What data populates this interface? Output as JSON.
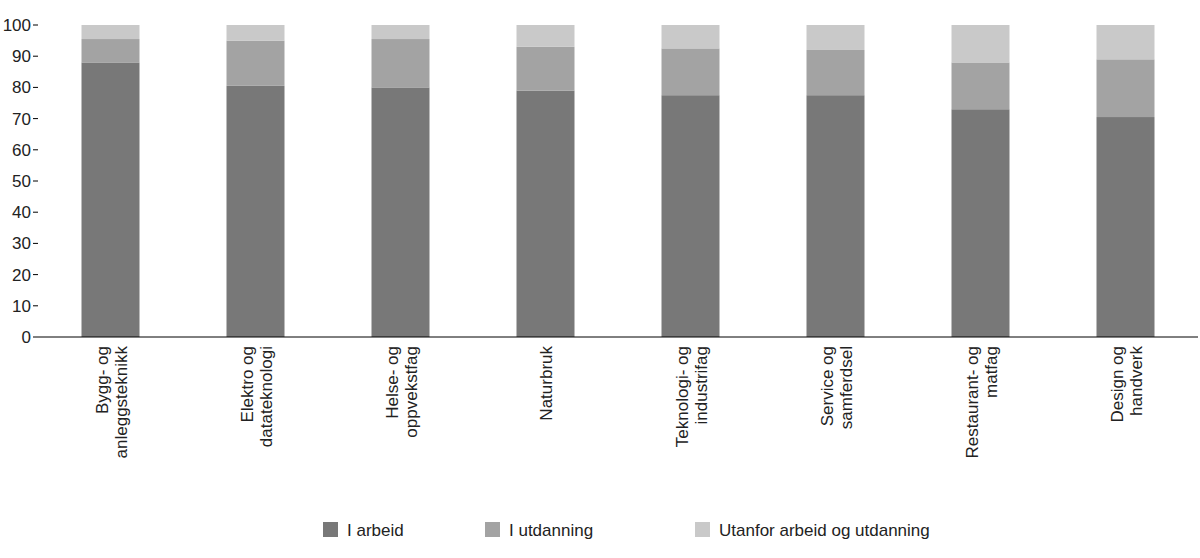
{
  "chart_data": {
    "type": "bar",
    "stacked": true,
    "grid": false,
    "legend": "bottom",
    "categories": [
      "Bygg- og anleggsteknikk",
      "Elektro og datateknologi",
      "Helse- og oppvekstfag",
      "Naturbruk",
      "Teknologi- og industrifag",
      "Service og samferdsel",
      "Restaurant- og matfag",
      "Design og handverk"
    ],
    "series": [
      {
        "name": "I arbeid",
        "color": "#787878",
        "values": [
          88,
          80.5,
          80,
          79,
          77.5,
          77.5,
          73,
          70.5
        ]
      },
      {
        "name": "I utdanning",
        "color": "#a3a3a3",
        "values": [
          7.5,
          14.5,
          15.5,
          14,
          15,
          14.5,
          15,
          18.5
        ]
      },
      {
        "name": "Utanfor arbeid og utdanning",
        "color": "#c9c9c9",
        "values": [
          4.5,
          5,
          4.5,
          7,
          7.5,
          8,
          12,
          11
        ]
      }
    ],
    "ylim": [
      0,
      100
    ],
    "yticks": [
      0,
      10,
      20,
      30,
      40,
      50,
      60,
      70,
      80,
      90,
      100
    ]
  }
}
